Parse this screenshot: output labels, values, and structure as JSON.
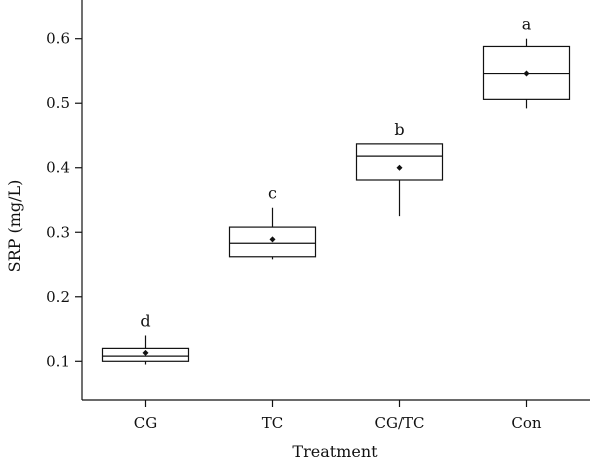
{
  "chart_data": {
    "type": "box",
    "xlabel": "Treatment",
    "ylabel": "SRP (mg/L)",
    "ylim": [
      0.04,
      0.66
    ],
    "yticks": [
      0.1,
      0.2,
      0.3,
      0.4,
      0.5,
      0.6
    ],
    "ytick_labels": [
      "0.1",
      "0.2",
      "0.3",
      "0.4",
      "0.5",
      "0.6"
    ],
    "grid": false,
    "categories": [
      "CG",
      "TC",
      "CG/TC",
      "Con"
    ],
    "groups": [
      {
        "name": "CG",
        "whisker_low": 0.095,
        "q1": 0.1,
        "median": 0.108,
        "q3": 0.12,
        "whisker_high": 0.14,
        "mean": 0.113,
        "significance": "d"
      },
      {
        "name": "TC",
        "whisker_low": 0.258,
        "q1": 0.262,
        "median": 0.283,
        "q3": 0.308,
        "whisker_high": 0.338,
        "mean": 0.289,
        "significance": "c"
      },
      {
        "name": "CG/TC",
        "whisker_low": 0.325,
        "q1": 0.381,
        "median": 0.418,
        "q3": 0.437,
        "whisker_high": 0.437,
        "mean": 0.4,
        "significance": "b"
      },
      {
        "name": "Con",
        "whisker_low": 0.492,
        "q1": 0.506,
        "median": 0.546,
        "q3": 0.588,
        "whisker_high": 0.6,
        "mean": 0.546,
        "significance": "a"
      }
    ]
  }
}
